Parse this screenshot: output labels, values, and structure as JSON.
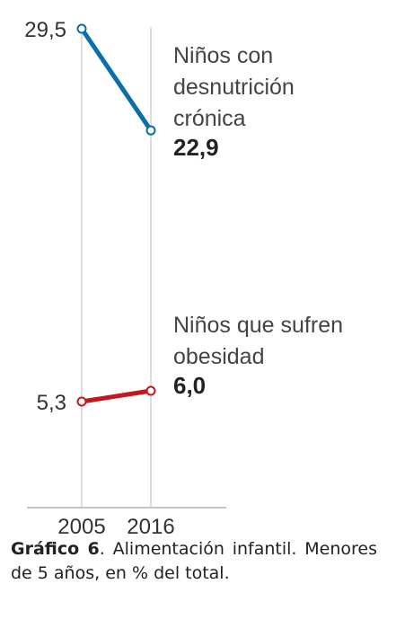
{
  "chart_data": {
    "type": "line",
    "x": [
      "2005",
      "2016"
    ],
    "series": [
      {
        "name_lines": [
          "Niños con",
          "desnutrición",
          "crónica"
        ],
        "values": [
          29.5,
          22.9
        ],
        "value_labels": [
          "29,5",
          "22,9"
        ],
        "color": "#0a6fa8"
      },
      {
        "name_lines": [
          "Niños que sufren",
          "obesidad"
        ],
        "values": [
          5.3,
          6.0
        ],
        "value_labels": [
          "5,3",
          "6,0"
        ],
        "color": "#c4161c"
      }
    ]
  },
  "caption": {
    "label": "Gráfico 6",
    "text": ". Alimentación infantil. Menores de 5 años, en % del total."
  }
}
